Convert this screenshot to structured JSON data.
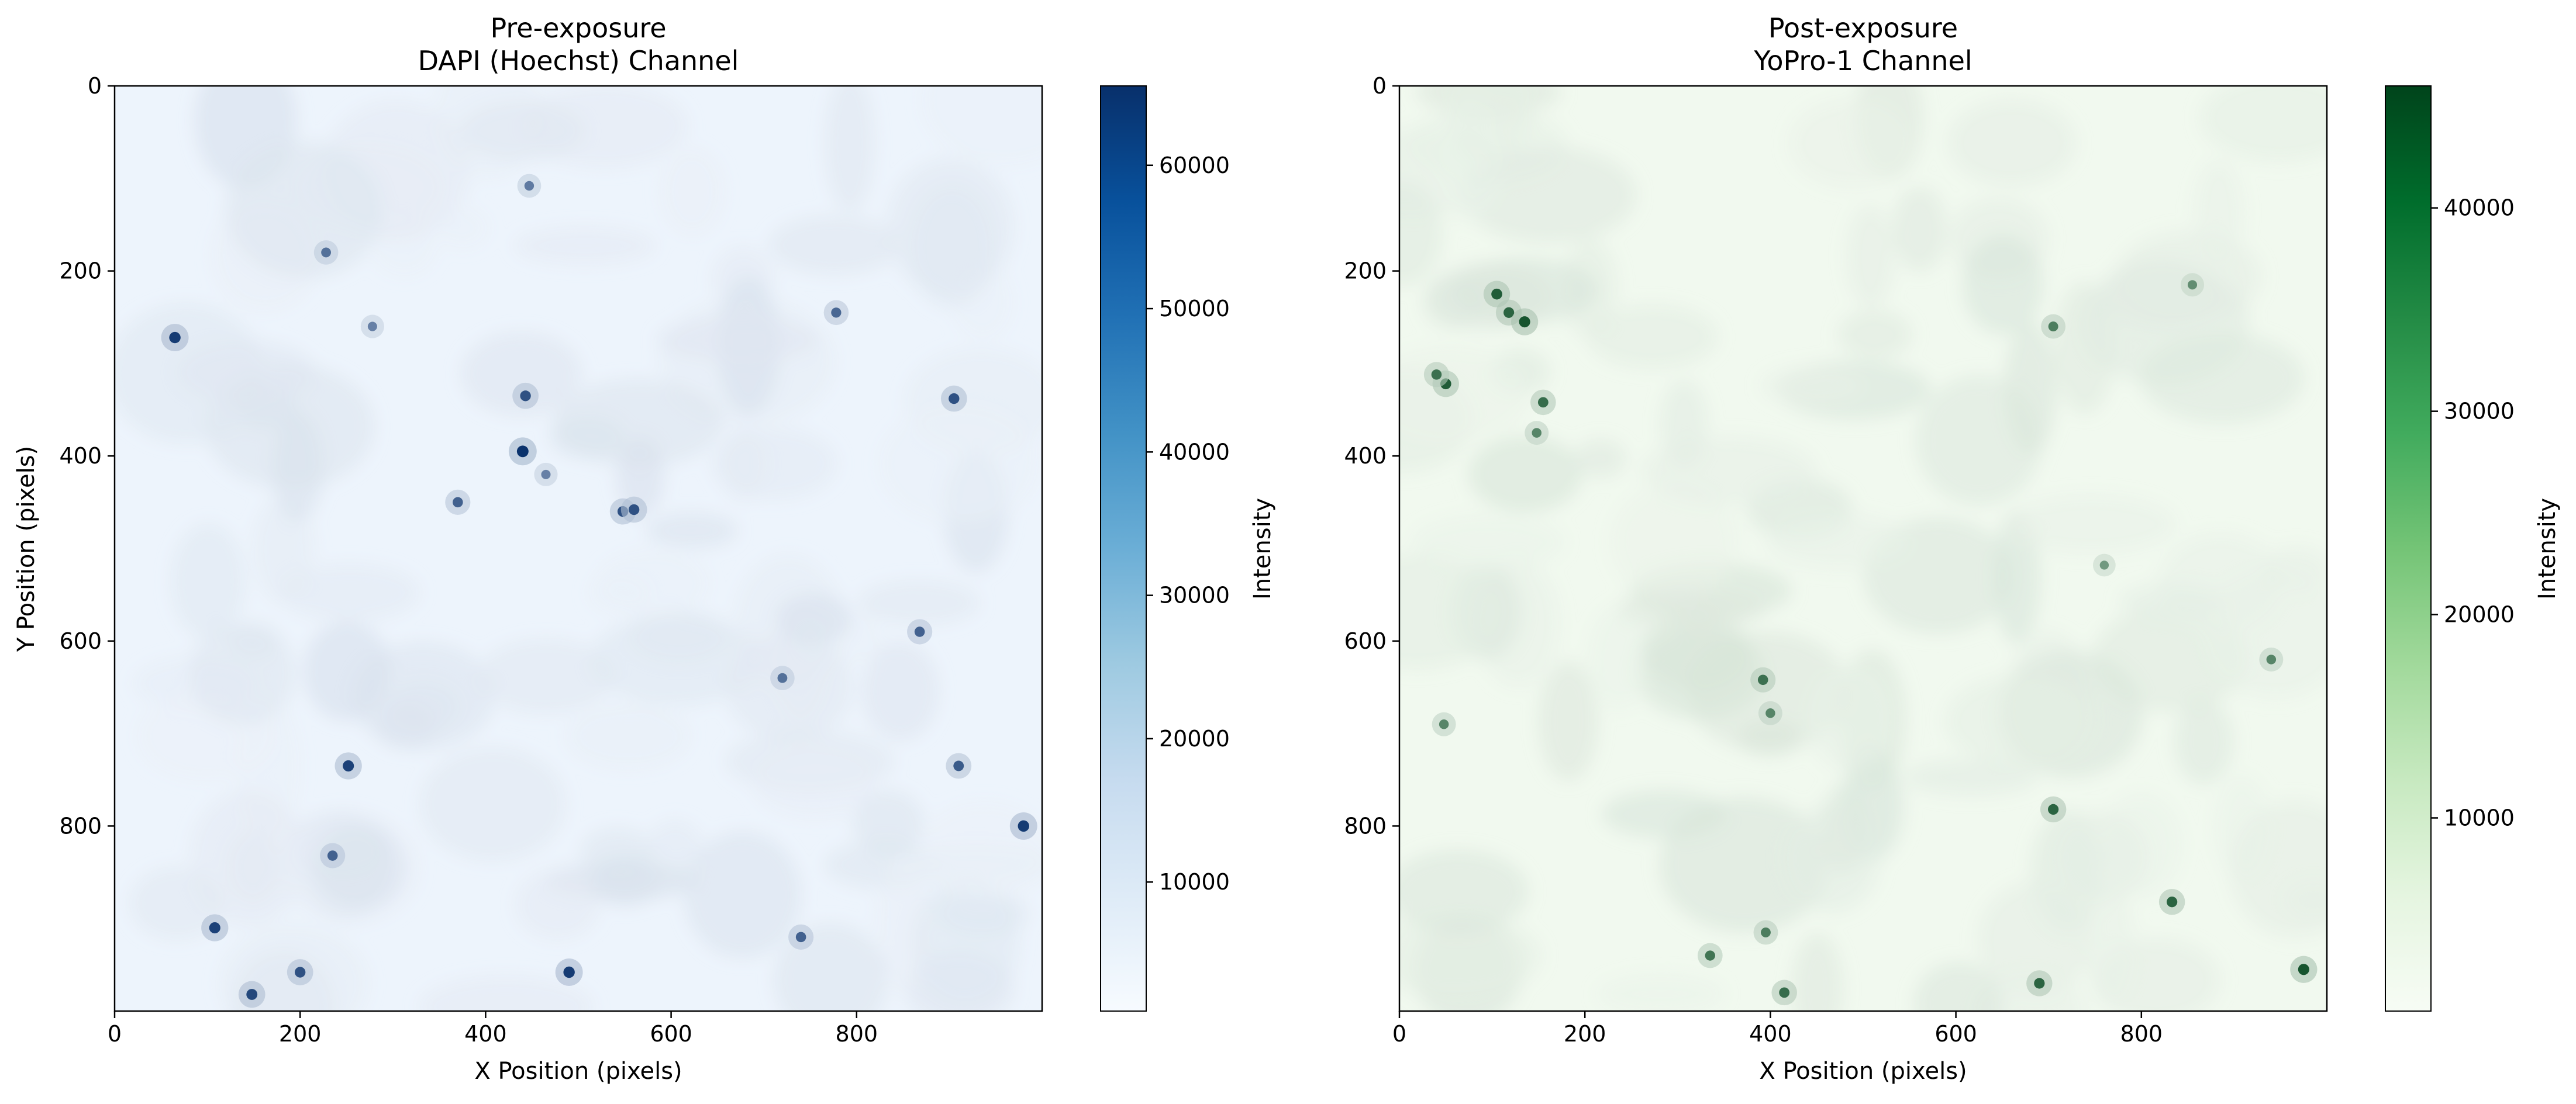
{
  "chart_data": [
    {
      "type": "heatmap",
      "title": "Pre-exposure",
      "subtitle": "DAPI (Hoechst) Channel",
      "xlabel": "X Position (pixels)",
      "ylabel": "Y Position (pixels)",
      "xlim": [
        0,
        1000
      ],
      "ylim": [
        1000,
        0
      ],
      "x_ticks": [
        "0",
        "200",
        "400",
        "600",
        "800"
      ],
      "y_ticks": [
        "0",
        "200",
        "400",
        "600",
        "800"
      ],
      "colormap": "Blues",
      "colors": {
        "low": "#f7fbff",
        "high": "#08306b",
        "background": "#edf4fc"
      },
      "colorbar": {
        "label": "Intensity",
        "range": [
          1000,
          65535
        ],
        "ticks": [
          "10000",
          "20000",
          "30000",
          "40000",
          "50000",
          "60000"
        ]
      },
      "bright_spots": [
        {
          "x": 65,
          "y": 272,
          "value": 62000
        },
        {
          "x": 108,
          "y": 910,
          "value": 60000
        },
        {
          "x": 148,
          "y": 982,
          "value": 58000
        },
        {
          "x": 200,
          "y": 958,
          "value": 55000
        },
        {
          "x": 228,
          "y": 180,
          "value": 45000
        },
        {
          "x": 235,
          "y": 832,
          "value": 50000
        },
        {
          "x": 252,
          "y": 735,
          "value": 60000
        },
        {
          "x": 278,
          "y": 260,
          "value": 40000
        },
        {
          "x": 370,
          "y": 450,
          "value": 50000
        },
        {
          "x": 440,
          "y": 395,
          "value": 65000
        },
        {
          "x": 443,
          "y": 335,
          "value": 55000
        },
        {
          "x": 447,
          "y": 108,
          "value": 42000
        },
        {
          "x": 465,
          "y": 420,
          "value": 40000
        },
        {
          "x": 490,
          "y": 958,
          "value": 62000
        },
        {
          "x": 548,
          "y": 460,
          "value": 55000
        },
        {
          "x": 560,
          "y": 458,
          "value": 55000
        },
        {
          "x": 720,
          "y": 640,
          "value": 45000
        },
        {
          "x": 740,
          "y": 920,
          "value": 50000
        },
        {
          "x": 778,
          "y": 245,
          "value": 48000
        },
        {
          "x": 868,
          "y": 590,
          "value": 50000
        },
        {
          "x": 905,
          "y": 338,
          "value": 55000
        },
        {
          "x": 910,
          "y": 735,
          "value": 52000
        },
        {
          "x": 980,
          "y": 800,
          "value": 62000
        }
      ]
    },
    {
      "type": "heatmap",
      "title": "Post-exposure",
      "subtitle": "YoPro-1 Channel",
      "xlabel": "X Position (pixels)",
      "ylabel": "",
      "xlim": [
        0,
        1000
      ],
      "ylim": [
        1000,
        0
      ],
      "x_ticks": [
        "0",
        "200",
        "400",
        "600",
        "800"
      ],
      "y_ticks": [
        "0",
        "200",
        "400",
        "600",
        "800"
      ],
      "colormap": "Greens",
      "colors": {
        "low": "#f7fcf5",
        "high": "#00441b",
        "background": "#f1f9ef"
      },
      "colorbar": {
        "label": "Intensity",
        "range": [
          500,
          46000
        ],
        "ticks": [
          "10000",
          "20000",
          "30000",
          "40000"
        ]
      },
      "bright_spots": [
        {
          "x": 50,
          "y": 322,
          "value": 40000
        },
        {
          "x": 40,
          "y": 312,
          "value": 35000
        },
        {
          "x": 105,
          "y": 225,
          "value": 40000
        },
        {
          "x": 118,
          "y": 245,
          "value": 38000
        },
        {
          "x": 135,
          "y": 255,
          "value": 42000
        },
        {
          "x": 155,
          "y": 342,
          "value": 36000
        },
        {
          "x": 148,
          "y": 375,
          "value": 30000
        },
        {
          "x": 392,
          "y": 642,
          "value": 35000
        },
        {
          "x": 400,
          "y": 678,
          "value": 30000
        },
        {
          "x": 705,
          "y": 782,
          "value": 38000
        },
        {
          "x": 705,
          "y": 260,
          "value": 32000
        },
        {
          "x": 833,
          "y": 882,
          "value": 38000
        },
        {
          "x": 690,
          "y": 970,
          "value": 38000
        },
        {
          "x": 940,
          "y": 620,
          "value": 30000
        },
        {
          "x": 975,
          "y": 955,
          "value": 42000
        },
        {
          "x": 415,
          "y": 980,
          "value": 36000
        },
        {
          "x": 760,
          "y": 518,
          "value": 25000
        },
        {
          "x": 855,
          "y": 215,
          "value": 28000
        },
        {
          "x": 48,
          "y": 690,
          "value": 30000
        },
        {
          "x": 335,
          "y": 940,
          "value": 34000
        },
        {
          "x": 395,
          "y": 915,
          "value": 32000
        }
      ]
    }
  ]
}
